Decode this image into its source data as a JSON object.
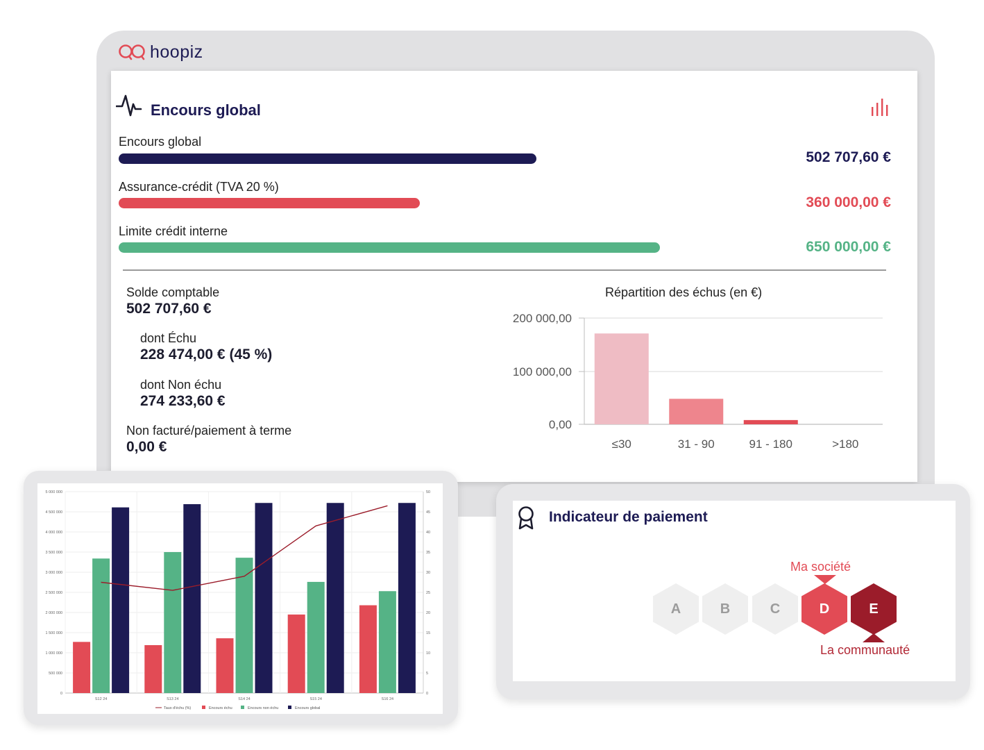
{
  "app": {
    "brand": "hoopiz"
  },
  "encours": {
    "title": "Encours global",
    "bars": [
      {
        "label": "Encours global",
        "value": "502 707,60 €",
        "fill": 0.54,
        "color": "#1d1b54"
      },
      {
        "label": "Assurance-crédit (TVA 20 %)",
        "value": "360 000,00 €",
        "fill": 0.39,
        "color": "#e24b55"
      },
      {
        "label": "Limite crédit interne",
        "value": "650 000,00 €",
        "fill": 0.7,
        "color": "#55b386"
      }
    ]
  },
  "stats": {
    "solde": {
      "label": "Solde comptable",
      "value": "502 707,60 €"
    },
    "echu": {
      "label": "dont Échu",
      "value": "228 474,00 € (45 %)"
    },
    "non_echu": {
      "label": "dont Non échu",
      "value": "274 233,60 €"
    },
    "non_facture": {
      "label": "Non facturé/paiement à terme",
      "value": "0,00 €"
    }
  },
  "echus_chart": {
    "title": "Répartition des échus (en €)",
    "y_ticks": [
      "200 000,00",
      "100 000,00",
      "0,00"
    ]
  },
  "chart_data": [
    {
      "type": "bar",
      "title": "Répartition des échus (en €)",
      "categories": [
        "≤30",
        "31 - 90",
        "91 - 180",
        ">180"
      ],
      "values": [
        171000,
        48000,
        8000,
        0
      ],
      "colors": [
        "#efbcc4",
        "#ee858d",
        "#e24b55",
        "#e24b55"
      ],
      "ylim": [
        0,
        200000
      ],
      "grid": true
    },
    {
      "type": "bar",
      "categories": [
        "S12 24",
        "S13 24",
        "S14 24",
        "S15 24",
        "S16 24"
      ],
      "series": [
        {
          "name": "Encours échu",
          "values": [
            1270000,
            1190000,
            1360000,
            1950000,
            2180000
          ],
          "color": "#e24b55"
        },
        {
          "name": "Encours non échu",
          "values": [
            3340000,
            3500000,
            3360000,
            2760000,
            2530000
          ],
          "color": "#55b386"
        },
        {
          "name": "Encours global",
          "values": [
            4610000,
            4690000,
            4720000,
            4720000,
            4720000
          ],
          "color": "#1d1b54"
        },
        {
          "name": "Taux d'échu (%)",
          "type": "line",
          "axis": "right",
          "values": [
            27.5,
            25.5,
            29,
            41.5,
            46.5
          ],
          "color": "#9b1c2a"
        }
      ],
      "y_ticks": [
        "5 000 000",
        "4 500 000",
        "4 000 000",
        "3 500 000",
        "3 000 000",
        "2 500 000",
        "2 000 000",
        "1 500 000",
        "1 000 000",
        "500 000",
        "0"
      ],
      "ylim": [
        0,
        5000000
      ],
      "y2_ticks": [
        "50",
        "45",
        "40",
        "35",
        "30",
        "25",
        "20",
        "15",
        "10",
        "5",
        "0"
      ],
      "y2lim": [
        0,
        50
      ],
      "legend": "bottom",
      "grid": true
    }
  ],
  "indicateur": {
    "title": "Indicateur de paiement",
    "grades": [
      "A",
      "B",
      "C",
      "D",
      "E"
    ],
    "ma_societe": "Ma société",
    "communaute": "La communauté",
    "ma_societe_grade": "D",
    "communaute_grade": "E"
  }
}
